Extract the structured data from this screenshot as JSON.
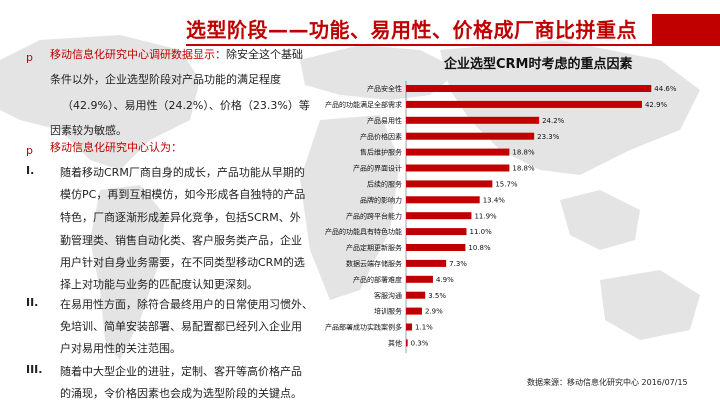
{
  "page": {
    "title": "选型阶段——功能、易用性、价格成厂商比拼重点"
  },
  "text": {
    "bullet1_lines": [
      "移动信息化研究中心调研数据显示：除安全这个基础",
      "条件以外，企业选型阶段对产品功能的满足程度",
      "（42.9%）、易用性（24.2%）、价格（23.3%）等",
      "因素较为敏感。"
    ],
    "bullet2_head": "移动信息化研究中心认为：",
    "items": [
      {
        "num": "I.",
        "lines": [
          "随着移动CRM厂商自身的成长，产品功能从早期的",
          "模仿PC，再到互相模仿，如今形成各自独特的产品",
          "特色，厂商逐渐形成差异化竞争，包括SCRM、外",
          "勤管理类、销售自动化类、客户服务类产品，企业",
          "用户针对自身业务需要，在不同类型移动CRM的选",
          "择上对功能与业务的匹配度认知更深刻。"
        ]
      },
      {
        "num": "II.",
        "lines": [
          "在易用性方面，除符合最终用户的日常使用习惯外、",
          "免培训、简单安装部署、易配置都已经列入企业用",
          "户对易用性的关注范围。"
        ]
      },
      {
        "num": "III.",
        "lines": [
          "随着中大型企业的进驻，定制、客开等高价格产品",
          "的涌现，令价格因素也会成为选型阶段的关键点。"
        ]
      }
    ]
  },
  "chart_data": {
    "type": "bar",
    "orientation": "horizontal",
    "title": "企业选型CRM时考虑的重点因素",
    "categories": [
      "产品安全性",
      "产品的功能满足全部需求",
      "产品易用性",
      "产品价格因素",
      "售后维护服务",
      "产品的界面设计",
      "后续的服务",
      "品牌的影响力",
      "产品的跨平台能力",
      "产品的功能具有特色功能",
      "产品定期更新服务",
      "数据云端存储服务",
      "产品的部署难度",
      "客服沟通",
      "培训服务",
      "产品部署成功实践案例多",
      "其他"
    ],
    "values": [
      44.6,
      42.9,
      24.2,
      23.3,
      18.8,
      18.8,
      15.7,
      13.4,
      11.9,
      11.0,
      10.8,
      7.3,
      4.9,
      3.5,
      2.9,
      1.1,
      0.3
    ],
    "labels": [
      "44.6%",
      "42.9%",
      "24.2%",
      "23.3%",
      "18.8%",
      "18.8%",
      "15.7%",
      "13.4%",
      "11.9%",
      "11.0%",
      "10.8%",
      "7.3%",
      "4.9%",
      "3.5%",
      "2.9%",
      "1.1%",
      "0.3%"
    ],
    "xlim": [
      0,
      50
    ],
    "bar_color": "#c00000",
    "source": "数据来源：移动信息化研究中心 2016/07/15"
  }
}
